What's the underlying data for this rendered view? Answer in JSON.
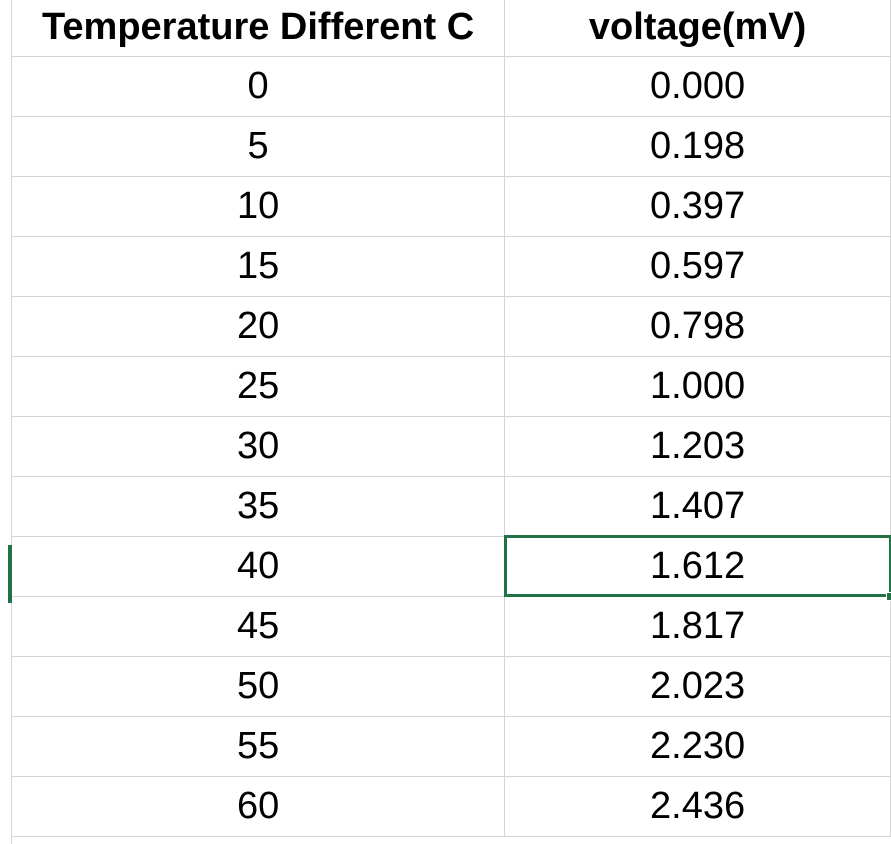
{
  "table": {
    "headers": [
      "Temperature Different C",
      "voltage(mV)"
    ],
    "rows": [
      [
        "0",
        "0.000"
      ],
      [
        "5",
        "0.198"
      ],
      [
        "10",
        "0.397"
      ],
      [
        "15",
        "0.597"
      ],
      [
        "20",
        "0.798"
      ],
      [
        "25",
        "1.000"
      ],
      [
        "30",
        "1.203"
      ],
      [
        "35",
        "1.407"
      ],
      [
        "40",
        "1.612"
      ],
      [
        "45",
        "1.817"
      ],
      [
        "50",
        "2.023"
      ],
      [
        "55",
        "2.230"
      ],
      [
        "60",
        "2.436"
      ]
    ],
    "selected_cell": {
      "row": 8,
      "column": 1
    }
  },
  "colors": {
    "selection": "#217346",
    "gridline": "#d4d4d4"
  }
}
